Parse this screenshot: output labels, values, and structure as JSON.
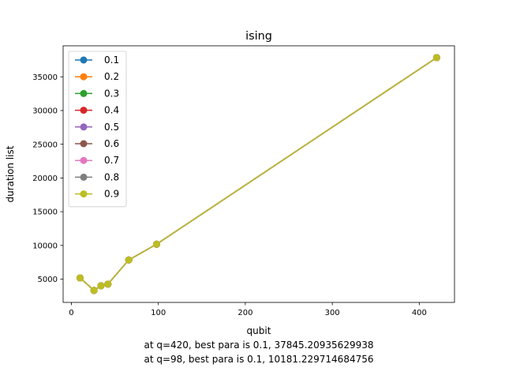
{
  "chart_data": {
    "type": "line",
    "title": "ising",
    "xlabel": "qubit",
    "ylabel": "duration list",
    "xlim": [
      -9.5,
      440.5
    ],
    "ylim": [
      1550,
      39600
    ],
    "x_ticks": [
      0,
      100,
      200,
      300,
      400
    ],
    "y_ticks": [
      5000,
      10000,
      15000,
      20000,
      25000,
      30000,
      35000
    ],
    "grid": false,
    "legend_position": "upper-left",
    "x": [
      10,
      26,
      34,
      42,
      66,
      98,
      420
    ],
    "series": [
      {
        "name": "0.1",
        "color": "#1f77b4",
        "values": [
          5180,
          3330,
          4020,
          4260,
          7850,
          10181.229714684756,
          37845.20935629938
        ]
      },
      {
        "name": "0.2",
        "color": "#ff7f0e",
        "values": [
          5180,
          3330,
          4020,
          4260,
          7850,
          10181.23,
          37845.21
        ]
      },
      {
        "name": "0.3",
        "color": "#2ca02c",
        "values": [
          5180,
          3330,
          4020,
          4260,
          7850,
          10181.23,
          37845.21
        ]
      },
      {
        "name": "0.4",
        "color": "#d62728",
        "values": [
          5180,
          3330,
          4020,
          4260,
          7850,
          10181.23,
          37845.21
        ]
      },
      {
        "name": "0.5",
        "color": "#9467bd",
        "values": [
          5180,
          3330,
          4020,
          4260,
          7850,
          10181.23,
          37845.21
        ]
      },
      {
        "name": "0.6",
        "color": "#8c564b",
        "values": [
          5180,
          3330,
          4020,
          4260,
          7850,
          10181.23,
          37845.21
        ]
      },
      {
        "name": "0.7",
        "color": "#e377c2",
        "values": [
          5180,
          3330,
          4020,
          4260,
          7850,
          10181.23,
          37845.21
        ]
      },
      {
        "name": "0.8",
        "color": "#7f7f7f",
        "values": [
          5180,
          3330,
          4020,
          4260,
          7850,
          10181.23,
          37845.21
        ]
      },
      {
        "name": "0.9",
        "color": "#bcbd22",
        "values": [
          5180,
          3330,
          4020,
          4260,
          7850,
          10181.23,
          37845.21
        ]
      }
    ],
    "annotations": [
      "at q=420, best para is 0.1, 37845.20935629938",
      "at q=98, best para is 0.1, 10181.229714684756"
    ]
  }
}
